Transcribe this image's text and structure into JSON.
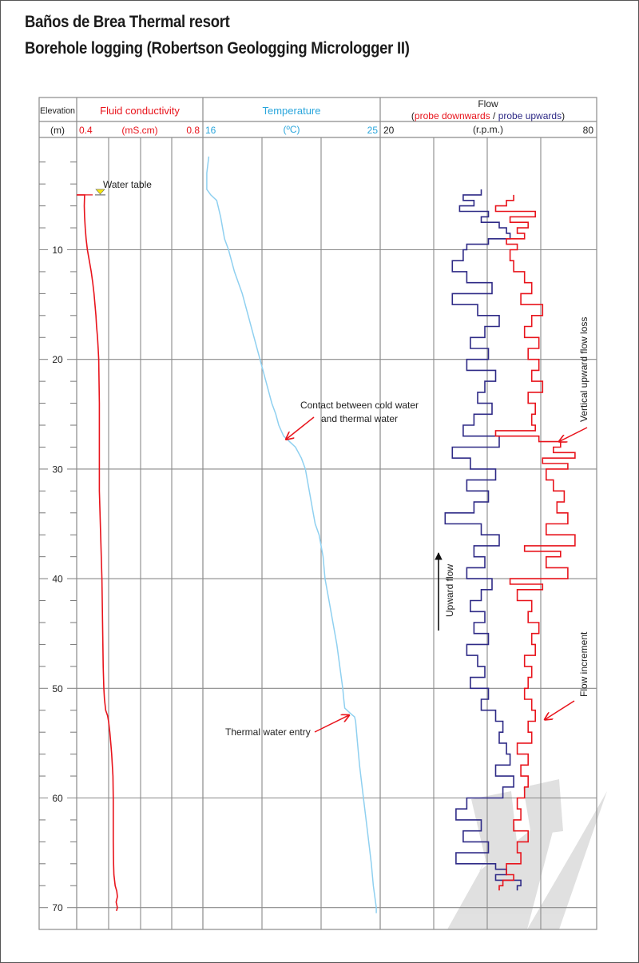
{
  "header": {
    "title_line1": "Baños de Brea Thermal resort",
    "title_line2": "Borehole logging (Robertson Geologging Micrologger II)"
  },
  "colors": {
    "conductivity": "#e8141c",
    "temperature": "#2aa6dc",
    "temperature_curve": "#8fd0f0",
    "flow_down": "#e8141c",
    "flow_up": "#2e2a86",
    "grid": "#8a8a8a",
    "annotation_arrow": "#e8141c",
    "water_table_marker": "#f4e60a"
  },
  "chart_data": {
    "type": "line",
    "title": "Borehole logging (Robertson Geologging Micrologger II)",
    "depth_axis": {
      "label": "Elevation",
      "unit": "(m)",
      "range": [
        0,
        75
      ],
      "major_ticks": [
        10,
        20,
        30,
        40,
        50,
        60,
        70
      ],
      "minor_step": 2,
      "grid": true
    },
    "tracks": [
      {
        "id": "conductivity",
        "title": "Fluid conductivity",
        "unit": "(mS.cm)",
        "min_label": "0.4",
        "max_label": "0.8",
        "range": [
          0.4,
          0.8
        ],
        "series": [
          {
            "name": "Fluid conductivity",
            "depth": [
              5.0,
              5.0,
              6,
              7,
              8,
              9,
              10,
              11,
              12,
              13,
              14,
              15,
              16,
              17,
              18,
              19,
              20,
              22,
              24,
              26,
              28,
              30,
              32,
              34,
              36,
              38,
              40,
              42,
              44,
              46,
              48,
              50,
              51,
              52,
              52.5,
              53,
              54,
              55,
              56,
              57,
              58,
              60,
              62,
              64,
              66,
              67,
              68,
              68.5,
              69,
              69.5,
              70,
              70.3
            ],
            "values": [
              0.4,
              0.425,
              0.424,
              0.425,
              0.427,
              0.43,
              0.434,
              0.44,
              0.446,
              0.451,
              0.455,
              0.458,
              0.461,
              0.463,
              0.466,
              0.468,
              0.47,
              0.471,
              0.472,
              0.472,
              0.472,
              0.472,
              0.472,
              0.474,
              0.476,
              0.478,
              0.48,
              0.481,
              0.482,
              0.483,
              0.484,
              0.486,
              0.488,
              0.492,
              0.498,
              0.501,
              0.505,
              0.508,
              0.511,
              0.513,
              0.515,
              0.516,
              0.516,
              0.516,
              0.517,
              0.518,
              0.522,
              0.527,
              0.529,
              0.525,
              0.529,
              0.526
            ]
          }
        ]
      },
      {
        "id": "temperature",
        "title": "Temperature",
        "unit": "(ºC)",
        "min_label": "16",
        "max_label": "25",
        "range": [
          16,
          25
        ],
        "series": [
          {
            "name": "Temperature",
            "depth": [
              1.5,
              3,
              4.5,
              5.0,
              5.5,
              7,
              9,
              10,
              12,
              14,
              16,
              18,
              20,
              22,
              24,
              25,
              26,
              27,
              27.5,
              28,
              29,
              30,
              32,
              34,
              35,
              36,
              38,
              40,
              42,
              44,
              46,
              48,
              50,
              51,
              51.8,
              52.3,
              52.6,
              53,
              55,
              57,
              60,
              63,
              66,
              68,
              70,
              70.5
            ],
            "values": [
              16.3,
              16.2,
              16.2,
              16.4,
              16.7,
              16.9,
              17.1,
              17.3,
              17.6,
              18.0,
              18.3,
              18.6,
              18.9,
              19.2,
              19.5,
              19.7,
              19.85,
              20.1,
              20.4,
              20.7,
              21.0,
              21.2,
              21.4,
              21.6,
              21.7,
              21.9,
              22.1,
              22.2,
              22.4,
              22.6,
              22.8,
              22.95,
              23.1,
              23.15,
              23.2,
              23.5,
              23.7,
              23.75,
              23.85,
              23.95,
              24.15,
              24.35,
              24.55,
              24.65,
              24.8,
              24.8
            ]
          }
        ]
      },
      {
        "id": "flow",
        "title": "Flow",
        "subtitle_down": "probe downwards",
        "subtitle_sep": "/",
        "subtitle_up": "probe upwards",
        "subtitle_open": "(",
        "subtitle_close": ")",
        "unit": "(r.p.m.)",
        "min_label": "20",
        "max_label": "80",
        "range": [
          20,
          80
        ],
        "series": [
          {
            "name": "probe downwards",
            "depth": [
              5,
              5.5,
              6,
              6.5,
              7,
              7.5,
              8,
              8.5,
              9,
              9.5,
              10,
              11,
              12,
              13,
              14,
              15,
              16,
              17,
              18,
              19,
              20,
              21,
              22,
              23,
              24,
              25,
              26,
              26.5,
              27,
              27.5,
              28,
              28.5,
              29,
              29.5,
              30,
              31,
              32,
              33,
              34,
              35,
              36,
              37,
              37.5,
              38,
              39,
              40,
              40.5,
              41,
              42,
              43,
              44,
              45,
              46,
              47,
              48,
              49,
              50,
              51,
              52,
              53,
              54,
              55,
              56,
              57,
              58,
              59,
              60,
              61,
              62,
              63,
              64,
              65,
              66,
              67,
              67.5,
              68
            ],
            "values": [
              57,
              55,
              52,
              63,
              56,
              61,
              58,
              60,
              55,
              58,
              56,
              57,
              60,
              62,
              59,
              65,
              62,
              60,
              64,
              61,
              64,
              62,
              65,
              61,
              63,
              62,
              63,
              52,
              64,
              70,
              68,
              74,
              65,
              72,
              66,
              68,
              71,
              69,
              72,
              66,
              74,
              60,
              70,
              66,
              72,
              56,
              65,
              58,
              62,
              61,
              64,
              62,
              63,
              60,
              62,
              61,
              60,
              62,
              63,
              61,
              62,
              58,
              61,
              59,
              61,
              60,
              58,
              59,
              57,
              61,
              58,
              59,
              55,
              57,
              54,
              53
            ]
          },
          {
            "name": "probe upwards",
            "depth": [
              4.5,
              5,
              5.5,
              6,
              6.5,
              7,
              7.5,
              8,
              8.5,
              9,
              9.5,
              10,
              11,
              12,
              13,
              14,
              15,
              16,
              17,
              18,
              19,
              20,
              21,
              22,
              23,
              24,
              25,
              26,
              27,
              28,
              29,
              30,
              31,
              32,
              33,
              34,
              35,
              36,
              37,
              38,
              39,
              40,
              41,
              42,
              43,
              44,
              45,
              46,
              47,
              48,
              49,
              50,
              51,
              52,
              53,
              54,
              55,
              56,
              57,
              58,
              59,
              60,
              61,
              62,
              63,
              64,
              65,
              66,
              66.5,
              67,
              67.5,
              68
            ],
            "values": [
              48,
              43,
              46,
              42,
              50,
              48,
              53,
              55,
              56,
              50,
              44,
              43,
              40,
              44,
              51,
              40,
              47,
              53,
              49,
              45,
              50,
              44,
              52,
              49,
              47,
              51,
              46,
              43,
              53,
              40,
              45,
              52,
              44,
              50,
              46,
              38,
              48,
              53,
              46,
              49,
              44,
              51,
              48,
              45,
              49,
              46,
              50,
              44,
              47,
              49,
              45,
              50,
              48,
              52,
              54,
              53,
              55,
              56,
              52,
              57,
              54,
              44,
              41,
              48,
              43,
              50,
              41,
              52,
              55,
              52,
              59,
              58
            ]
          }
        ]
      }
    ],
    "annotations": [
      {
        "id": "water-table",
        "text": "Water table",
        "track": "conductivity",
        "depth": 5.0
      },
      {
        "id": "contact",
        "text_line1": "Contact between cold water",
        "text_line2": "and thermal water",
        "track": "temperature",
        "depth": 27.0,
        "value": 20.1
      },
      {
        "id": "thermal-entry",
        "text": "Thermal water entry",
        "track": "temperature",
        "depth": 52.3,
        "value": 23.5
      },
      {
        "id": "flow-loss",
        "text": "Vertical upward flow loss",
        "track": "flow",
        "depth": 27.5
      },
      {
        "id": "flow-increment",
        "text": "Flow increment",
        "track": "flow",
        "depth": 53.0
      },
      {
        "id": "upward-flow",
        "text": "Upward flow",
        "track": "flow"
      }
    ]
  }
}
